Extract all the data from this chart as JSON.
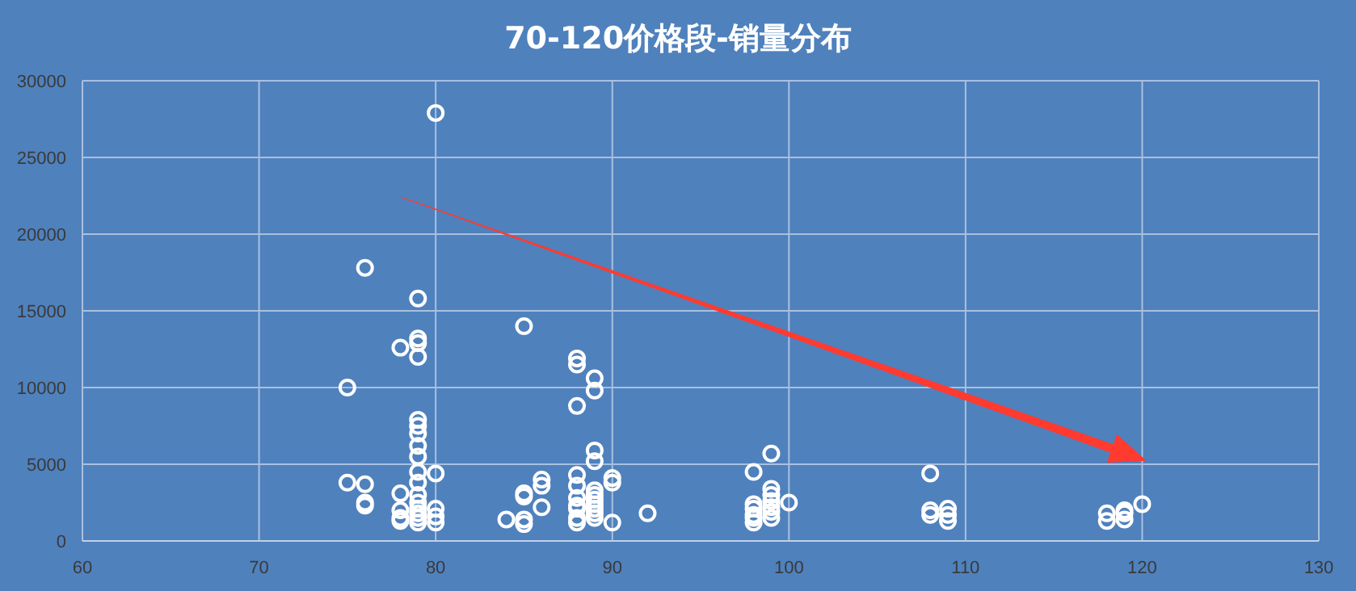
{
  "chart_data": {
    "type": "scatter",
    "title": "70-120价格段-销量分布",
    "xlim": [
      60,
      130
    ],
    "xticks": [
      60,
      70,
      80,
      90,
      100,
      110,
      120,
      130
    ],
    "ylim": [
      0,
      30000
    ],
    "yticks": [
      0,
      5000,
      10000,
      15000,
      20000,
      25000,
      30000
    ],
    "grid": true,
    "marker": "circle",
    "series": [
      {
        "color": "#ffffff",
        "x": [
          75,
          75,
          76,
          76,
          76,
          76,
          78,
          78,
          78,
          78,
          78,
          79,
          79,
          79,
          79,
          79,
          79,
          79,
          79,
          79,
          79,
          79,
          79,
          79,
          79,
          79,
          79,
          79,
          80,
          80,
          80,
          80,
          80,
          84,
          85,
          85,
          85,
          85,
          85,
          86,
          86,
          86,
          88,
          88,
          88,
          88,
          88,
          88,
          88,
          88,
          88,
          88,
          89,
          89,
          89,
          89,
          89,
          89,
          89,
          89,
          89,
          89,
          89,
          90,
          90,
          90,
          92,
          98,
          98,
          98,
          98,
          98,
          98,
          99,
          99,
          99,
          99,
          99,
          99,
          99,
          100,
          108,
          108,
          108,
          109,
          109,
          109,
          118,
          118,
          119,
          119,
          119,
          120
        ],
        "values": [
          10000,
          3800,
          17800,
          3700,
          2500,
          2300,
          12600,
          3100,
          2000,
          1500,
          1300,
          15800,
          13200,
          12900,
          12000,
          7900,
          7500,
          7000,
          6200,
          5500,
          4500,
          3800,
          3000,
          2500,
          2100,
          1800,
          1500,
          1200,
          27900,
          4400,
          2100,
          1600,
          1200,
          1400,
          14000,
          3100,
          2900,
          1400,
          1100,
          4000,
          3600,
          2200,
          11900,
          11500,
          8800,
          4300,
          3600,
          2800,
          2300,
          2100,
          1500,
          1200,
          10600,
          9800,
          5900,
          5200,
          3300,
          3000,
          2700,
          2400,
          2100,
          1800,
          1500,
          4100,
          3800,
          1200,
          1800,
          4500,
          2400,
          2100,
          1700,
          1500,
          1200,
          5700,
          3400,
          3000,
          2600,
          2200,
          1900,
          1500,
          2500,
          4400,
          2000,
          1700,
          2100,
          1700,
          1300,
          1800,
          1300,
          2000,
          1800,
          1400,
          2400
        ]
      }
    ]
  }
}
